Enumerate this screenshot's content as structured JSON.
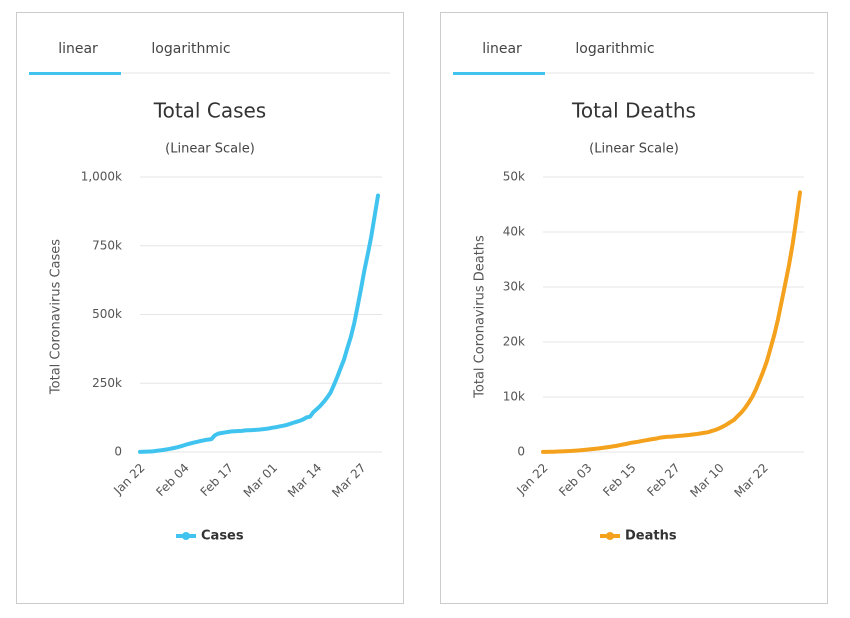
{
  "chart_data": [
    {
      "type": "line",
      "tabs": [
        "linear",
        "logarithmic"
      ],
      "title": "Total Cases",
      "subtitle": "(Linear Scale)",
      "y_label": "Total Coronavirus Cases",
      "categories": [
        "Jan 22",
        null,
        null,
        null,
        null,
        null,
        null,
        null,
        null,
        null,
        null,
        null,
        null,
        "Feb 04",
        null,
        null,
        null,
        null,
        null,
        null,
        null,
        null,
        null,
        null,
        null,
        null,
        "Feb 17",
        null,
        null,
        null,
        null,
        null,
        null,
        null,
        null,
        null,
        null,
        null,
        null,
        "Mar 01",
        null,
        null,
        null,
        null,
        null,
        null,
        null,
        null,
        null,
        null,
        null,
        null,
        "Mar 14",
        null,
        null,
        null,
        null,
        null,
        null,
        null,
        null,
        null,
        null,
        null,
        null,
        "Mar 27",
        null,
        null,
        null,
        null,
        null
      ],
      "series": [
        {
          "name": "Cases",
          "color": "#40c4ef",
          "values": [
            580,
            845,
            1317,
            2015,
            2800,
            4581,
            6058,
            7813,
            9823,
            11950,
            14553,
            17391,
            20630,
            24554,
            28276,
            31481,
            34886,
            37558,
            40509,
            43103,
            45171,
            46727,
            60364,
            66885,
            69030,
            71224,
            73258,
            75136,
            75639,
            76197,
            76823,
            78579,
            78965,
            79568,
            80413,
            81395,
            82754,
            84120,
            86011,
            88369,
            90306,
            92840,
            95120,
            97886,
            101800,
            105836,
            109835,
            113582,
            118582,
            125865,
            128343,
            145193,
            156097,
            167449,
            181531,
            197146,
            214910,
            242708,
            272166,
            304524,
            335955,
            378287,
            417966,
            467594,
            529591,
            593291,
            660706,
            720117,
            782365,
            857487,
            932605
          ]
        }
      ],
      "ylim": [
        0,
        1000000
      ],
      "yticks": [
        0,
        {
          "value": 250000,
          "label": "250k"
        },
        {
          "value": 500000,
          "label": "500k"
        },
        {
          "value": 750000,
          "label": "750k"
        },
        {
          "value": 1000000,
          "label": "1,000k"
        }
      ],
      "grid": true
    },
    {
      "type": "line",
      "tabs": [
        "linear",
        "logarithmic"
      ],
      "title": "Total Deaths",
      "subtitle": "(Linear Scale)",
      "y_label": "Total Coronavirus Deaths",
      "categories": [
        "Jan 22",
        null,
        null,
        null,
        null,
        null,
        null,
        null,
        null,
        null,
        null,
        null,
        "Feb 03",
        null,
        null,
        null,
        null,
        null,
        null,
        null,
        null,
        null,
        null,
        null,
        "Feb 15",
        null,
        null,
        null,
        null,
        null,
        null,
        null,
        null,
        null,
        null,
        null,
        "Feb 27",
        null,
        null,
        null,
        null,
        null,
        null,
        null,
        null,
        null,
        null,
        null,
        "Mar 10",
        null,
        null,
        null,
        null,
        null,
        null,
        null,
        null,
        null,
        null,
        null,
        "Mar 22",
        null,
        null,
        null,
        null,
        null,
        null,
        null,
        null,
        null,
        null
      ],
      "series": [
        {
          "name": "Deaths",
          "color": "#f4a11d",
          "values": [
            17,
            25,
            41,
            56,
            80,
            106,
            132,
            170,
            213,
            259,
            304,
            362,
            426,
            492,
            565,
            638,
            724,
            813,
            910,
            1018,
            1115,
            1261,
            1383,
            1526,
            1669,
            1775,
            1873,
            2009,
            2126,
            2247,
            2360,
            2460,
            2618,
            2699,
            2763,
            2800,
            2858,
            2923,
            2977,
            3050,
            3117,
            3202,
            3285,
            3387,
            3494,
            3599,
            3827,
            4025,
            4296,
            4628,
            4981,
            5428,
            5833,
            6520,
            7162,
            7979,
            8951,
            10030,
            11386,
            12999,
            14681,
            16558,
            18916,
            21312,
            24107,
            27360,
            30631,
            33976,
            37830,
            42334,
            47210
          ]
        }
      ],
      "ylim": [
        0,
        50000
      ],
      "yticks": [
        0,
        {
          "value": 10000,
          "label": "10k"
        },
        {
          "value": 20000,
          "label": "20k"
        },
        {
          "value": 30000,
          "label": "30k"
        },
        {
          "value": 40000,
          "label": "40k"
        },
        {
          "value": 50000,
          "label": "50k"
        }
      ],
      "grid": true
    }
  ]
}
